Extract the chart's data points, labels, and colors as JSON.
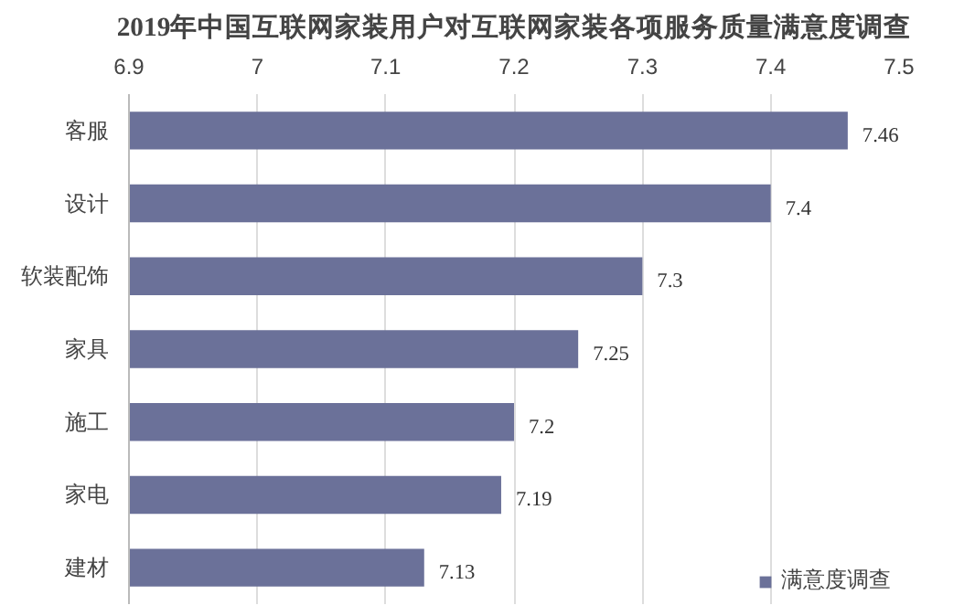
{
  "chart_data": {
    "type": "bar",
    "orientation": "horizontal",
    "title": "2019年中国互联网家装用户对互联网家装各项服务质量满意度调查",
    "categories": [
      "客服",
      "设计",
      "软装配饰",
      "家具",
      "施工",
      "家电",
      "建材"
    ],
    "series": [
      {
        "name": "满意度调查",
        "color": "#6b7199",
        "values": [
          7.46,
          7.4,
          7.3,
          7.25,
          7.2,
          7.19,
          7.13
        ]
      }
    ],
    "xlim": [
      6.9,
      7.5
    ],
    "xticks": [
      6.9,
      7,
      7.1,
      7.2,
      7.3,
      7.4,
      7.5
    ],
    "grid": "x",
    "legend": "bottom right",
    "data_labels": true
  }
}
